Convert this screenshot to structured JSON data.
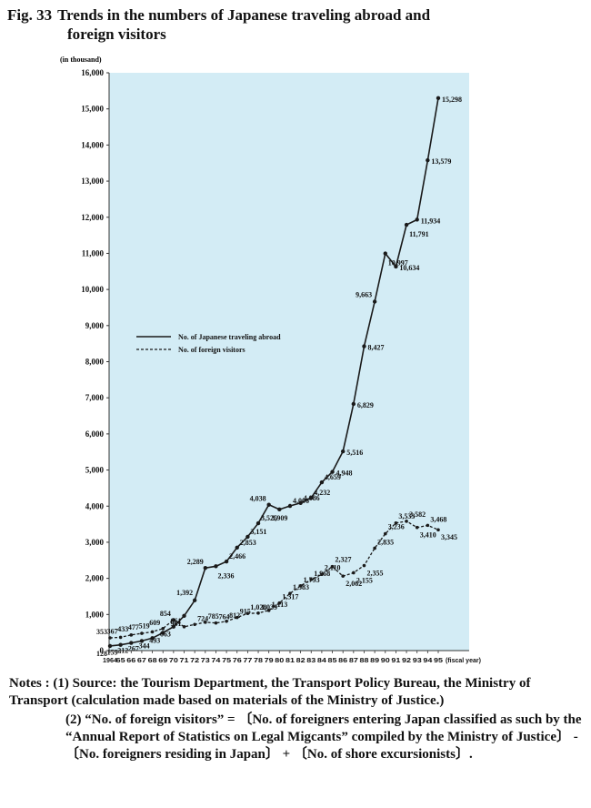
{
  "figure": {
    "number": "Fig. 33",
    "title_line1": "Trends in the numbers of Japanese traveling abroad and",
    "title_line2": "foreign visitors"
  },
  "colors": {
    "plot_bg": "#d3ecf5",
    "line": "#1a1a1a"
  },
  "chart_data": {
    "type": "line",
    "title": "Trends in the numbers of Japanese traveling abroad and foreign visitors",
    "unit_label": "(in thousand)",
    "xlabel_suffix": "(fiscal year)",
    "ylim": [
      0,
      16000
    ],
    "yticks": [
      "0",
      "1,000",
      "2,000",
      "3,000",
      "4,000",
      "5,000",
      "6,000",
      "7,000",
      "8,000",
      "9,000",
      "10,000",
      "11,000",
      "12,000",
      "13,000",
      "14,000",
      "15,000",
      "16,000"
    ],
    "x": [
      "1964",
      "65",
      "66",
      "67",
      "68",
      "69",
      "70",
      "71",
      "72",
      "73",
      "74",
      "75",
      "76",
      "77",
      "78",
      "79",
      "80",
      "81",
      "82",
      "83",
      "84",
      "85",
      "86",
      "87",
      "88",
      "89",
      "90",
      "91",
      "92",
      "93",
      "94",
      "95"
    ],
    "grid": false,
    "legend_position": "middle-left",
    "series": [
      {
        "name": "No. of Japanese traveling abroad",
        "style": "solid",
        "values": [
          128,
          159,
          212,
          267,
          344,
          493,
          663,
          961,
          1392,
          2289,
          2336,
          2466,
          2853,
          3151,
          3525,
          4038,
          3909,
          4006,
          4086,
          4232,
          4659,
          4948,
          5516,
          6829,
          8427,
          9663,
          10997,
          10634,
          11791,
          11934,
          13579,
          15298
        ],
        "labels": [
          "128",
          "159",
          "212",
          "267",
          "344",
          "493",
          "663",
          "961",
          "1,392",
          "2,289",
          "2,336",
          "2,466",
          "2,853",
          "3,151",
          "3,525",
          "4,038",
          "3,909",
          "4,006",
          "4,086",
          "4,232",
          "4,659",
          "4,948",
          "5,516",
          "6,829",
          "8,427",
          "9,663",
          "10,997",
          "10,634",
          "11,791",
          "11,934",
          "13,579",
          "15,298"
        ]
      },
      {
        "name": "No. of foreign visitors",
        "style": "dashed",
        "values": [
          353,
          367,
          433,
          477,
          519,
          609,
          854,
          661,
          724,
          785,
          764,
          812,
          915,
          1028,
          1039,
          1113,
          1317,
          1583,
          1793,
          1968,
          2110,
          2327,
          2062,
          2155,
          2355,
          2835,
          3236,
          3533,
          3582,
          3410,
          3468,
          3345
        ],
        "labels": [
          "353",
          "367",
          "433",
          "477",
          "519",
          "609",
          "854",
          "661",
          "724",
          "785",
          "764",
          "812",
          "915",
          "1,028",
          "1,039",
          "1,113",
          "1,317",
          "1,583",
          "1,793",
          "1,968",
          "2,110",
          "2,327",
          "2,062",
          "2,155",
          "2,355",
          "2,835",
          "3,236",
          "3,533",
          "3,582",
          "3,410",
          "3,468",
          "3,345"
        ]
      }
    ]
  },
  "notes": {
    "label": "Notes :",
    "n1_num": "(1)",
    "n1_text": "Source: the Tourism Department, the Transport Policy Bureau, the Ministry of Transport (calculation made based on materials of the Ministry of Justice.)",
    "n2_num": "(2)",
    "n2_text": "“No. of foreign visitors” = 〔No. of foreigners entering Japan classified as such by the “Annual Report of Statistics on Legal Migcants” compiled by the Ministry of Justice〕 - 〔No. foreigners residing in Japan〕 + 〔No. of shore excursionists〕."
  }
}
